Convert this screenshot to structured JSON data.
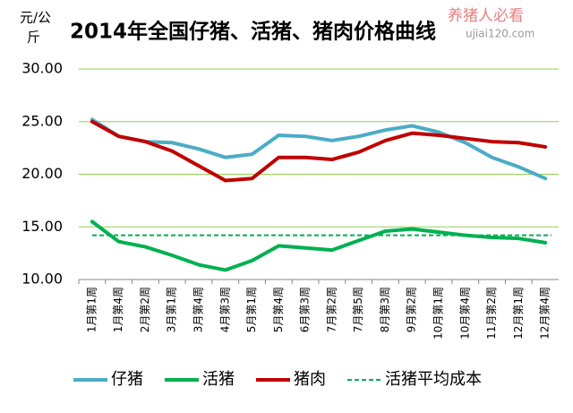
{
  "chart_data": {
    "type": "line",
    "title": "2014年全国仔猪、活猪、猪肉价格曲线",
    "y_label_top": "元/公",
    "y_label_bottom": "斤",
    "watermark": [
      "养猪人必看",
      "ujiai120.com"
    ],
    "categories": [
      "1月第1周",
      "1月第4周",
      "2月第2周",
      "3月第1周",
      "3月第4周",
      "4月第3周",
      "5月第1周",
      "5月第4周",
      "6月第3周",
      "7月第2周",
      "7月第5周",
      "8月第3周",
      "9月第2周",
      "10月第1周",
      "10月第4周",
      "11月第2周",
      "12月第1周",
      "12月第4周"
    ],
    "series": [
      {
        "name": "仔猪",
        "color": "#4bacc6",
        "values": [
          25.2,
          23.6,
          23.1,
          23.0,
          22.4,
          21.6,
          21.9,
          23.7,
          23.6,
          23.2,
          23.6,
          24.2,
          24.6,
          24.0,
          23.0,
          21.6,
          20.7,
          19.6
        ]
      },
      {
        "name": "活猪",
        "color": "#00b050",
        "values": [
          15.5,
          13.6,
          13.1,
          12.3,
          11.4,
          10.9,
          11.8,
          13.2,
          13.0,
          12.8,
          13.7,
          14.6,
          14.8,
          14.5,
          14.2,
          14.0,
          13.9,
          13.5
        ]
      },
      {
        "name": "猪肉",
        "color": "#c00000",
        "values": [
          25.0,
          23.6,
          23.1,
          22.2,
          20.8,
          19.4,
          19.6,
          21.6,
          21.6,
          21.4,
          22.1,
          23.2,
          23.9,
          23.7,
          23.4,
          23.1,
          23.0,
          22.6
        ]
      }
    ],
    "reference_line": {
      "name": "活猪平均成本",
      "value": 14.2,
      "color": "#00b050",
      "dashed": true
    },
    "ylim": [
      10,
      30
    ],
    "yticks": [
      {
        "value": 10,
        "label": "10.00"
      },
      {
        "value": 15,
        "label": "15.00"
      },
      {
        "value": 20,
        "label": "20.00"
      },
      {
        "value": 25,
        "label": "25.00"
      },
      {
        "value": 30,
        "label": "30.00"
      }
    ],
    "grid": true,
    "grid_color": "#92d050",
    "legend": "bottom"
  }
}
